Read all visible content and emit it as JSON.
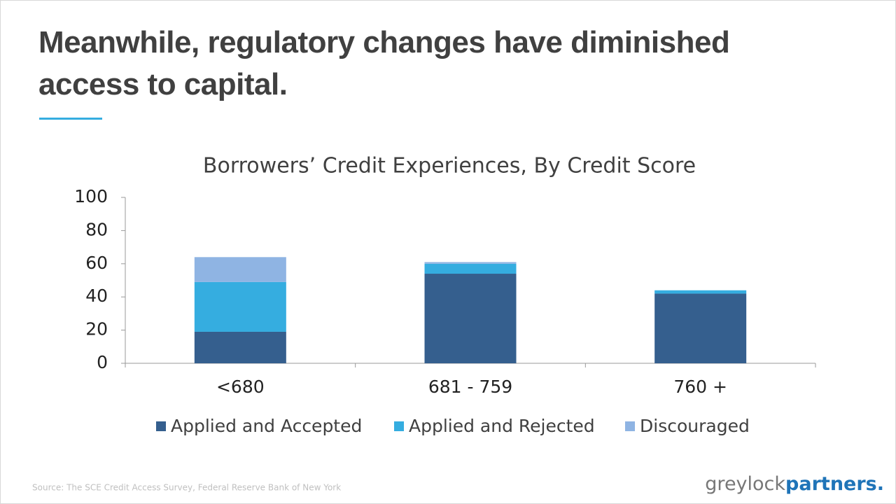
{
  "header": {
    "title": "Meanwhile, regulatory changes have diminished access to capital."
  },
  "chart_data": {
    "type": "stacked_bar",
    "title": "Borrowers’ Credit Experiences, By Credit Score",
    "categories": [
      "<680",
      "681 - 759",
      "760 +"
    ],
    "series": [
      {
        "name": "Applied and Accepted",
        "color": "#355f8e",
        "values": [
          19,
          54,
          42
        ]
      },
      {
        "name": "Applied and Rejected",
        "color": "#35ade0",
        "values": [
          30,
          6,
          2
        ]
      },
      {
        "name": "Discouraged",
        "color": "#8fb4e3",
        "values": [
          15,
          1,
          0
        ]
      }
    ],
    "ylim": [
      0,
      100
    ],
    "yticks": [
      0,
      20,
      40,
      60,
      80,
      100
    ],
    "grid": false,
    "legend": "bottom"
  },
  "footer": {
    "source": "Source: The SCE Credit Access Survey, Federal Reserve Bank of New York",
    "logo_left": "greylock",
    "logo_right": "partners."
  }
}
